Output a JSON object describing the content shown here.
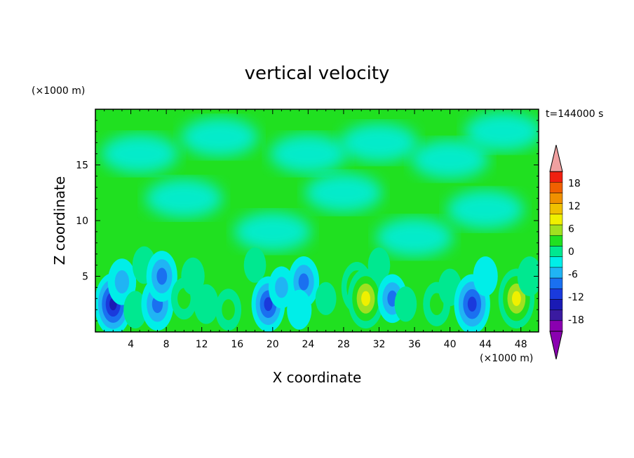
{
  "chart_data": {
    "type": "heatmap",
    "title": "vertical velocity",
    "xlabel": "X coordinate",
    "ylabel": "Z coordinate",
    "x_unit": "(×1000 m)",
    "y_unit": "(×1000 m)",
    "time_label": "t=144000 s",
    "xlim": [
      0,
      50
    ],
    "ylim": [
      0,
      20
    ],
    "x_ticks": [
      4,
      8,
      12,
      16,
      20,
      24,
      28,
      32,
      36,
      40,
      44,
      48
    ],
    "y_ticks": [
      5,
      10,
      15
    ],
    "colorbar": {
      "levels": [
        -21,
        -18,
        -15,
        -12,
        -9,
        -6,
        -3,
        0,
        3,
        6,
        9,
        12,
        15,
        18,
        21
      ],
      "tick_labels": [
        "18",
        "12",
        "6",
        "0",
        "-6",
        "-12",
        "-18"
      ],
      "tick_values": [
        18,
        12,
        6,
        0,
        -6,
        -12,
        -18
      ],
      "colors": [
        "#8a00b0",
        "#3a1aa0",
        "#1a1ab4",
        "#1a3adc",
        "#1a70f0",
        "#20b4f4",
        "#00eee8",
        "#00e890",
        "#20e020",
        "#a0e020",
        "#f0f000",
        "#f0c000",
        "#f09000",
        "#f06000",
        "#f02010"
      ],
      "under_color": "#8a00b0",
      "over_color": "#f0a0a0"
    },
    "cells": [
      {
        "x": 2,
        "z": 2.5,
        "w": -14
      },
      {
        "x": 3,
        "z": 4.5,
        "w": -7
      },
      {
        "x": 4.5,
        "z": 2,
        "w": 3
      },
      {
        "x": 5.5,
        "z": 6,
        "w": 3
      },
      {
        "x": 7,
        "z": 2.5,
        "w": -10
      },
      {
        "x": 7.5,
        "z": 5,
        "w": -9
      },
      {
        "x": 10,
        "z": 3,
        "w": 5
      },
      {
        "x": 11,
        "z": 5,
        "w": 3
      },
      {
        "x": 12.5,
        "z": 2.5,
        "w": 4
      },
      {
        "x": 15,
        "z": 2,
        "w": 5
      },
      {
        "x": 18,
        "z": 6,
        "w": 2
      },
      {
        "x": 19.5,
        "z": 2.5,
        "w": -11
      },
      {
        "x": 21,
        "z": 4,
        "w": -5
      },
      {
        "x": 23.5,
        "z": 4.5,
        "w": -9
      },
      {
        "x": 23,
        "z": 2,
        "w": -4
      },
      {
        "x": 26,
        "z": 3,
        "w": 1
      },
      {
        "x": 29.5,
        "z": 4,
        "w": 9
      },
      {
        "x": 30.5,
        "z": 3,
        "w": 13
      },
      {
        "x": 32,
        "z": 6,
        "w": 2
      },
      {
        "x": 33.5,
        "z": 3,
        "w": -8
      },
      {
        "x": 35,
        "z": 2.5,
        "w": 2
      },
      {
        "x": 38.5,
        "z": 2.5,
        "w": 6
      },
      {
        "x": 40,
        "z": 4,
        "w": 3
      },
      {
        "x": 42.5,
        "z": 2.5,
        "w": -13
      },
      {
        "x": 44,
        "z": 5,
        "w": -4
      },
      {
        "x": 47.5,
        "z": 3,
        "w": 13
      },
      {
        "x": 49,
        "z": 5,
        "w": 4
      }
    ]
  }
}
